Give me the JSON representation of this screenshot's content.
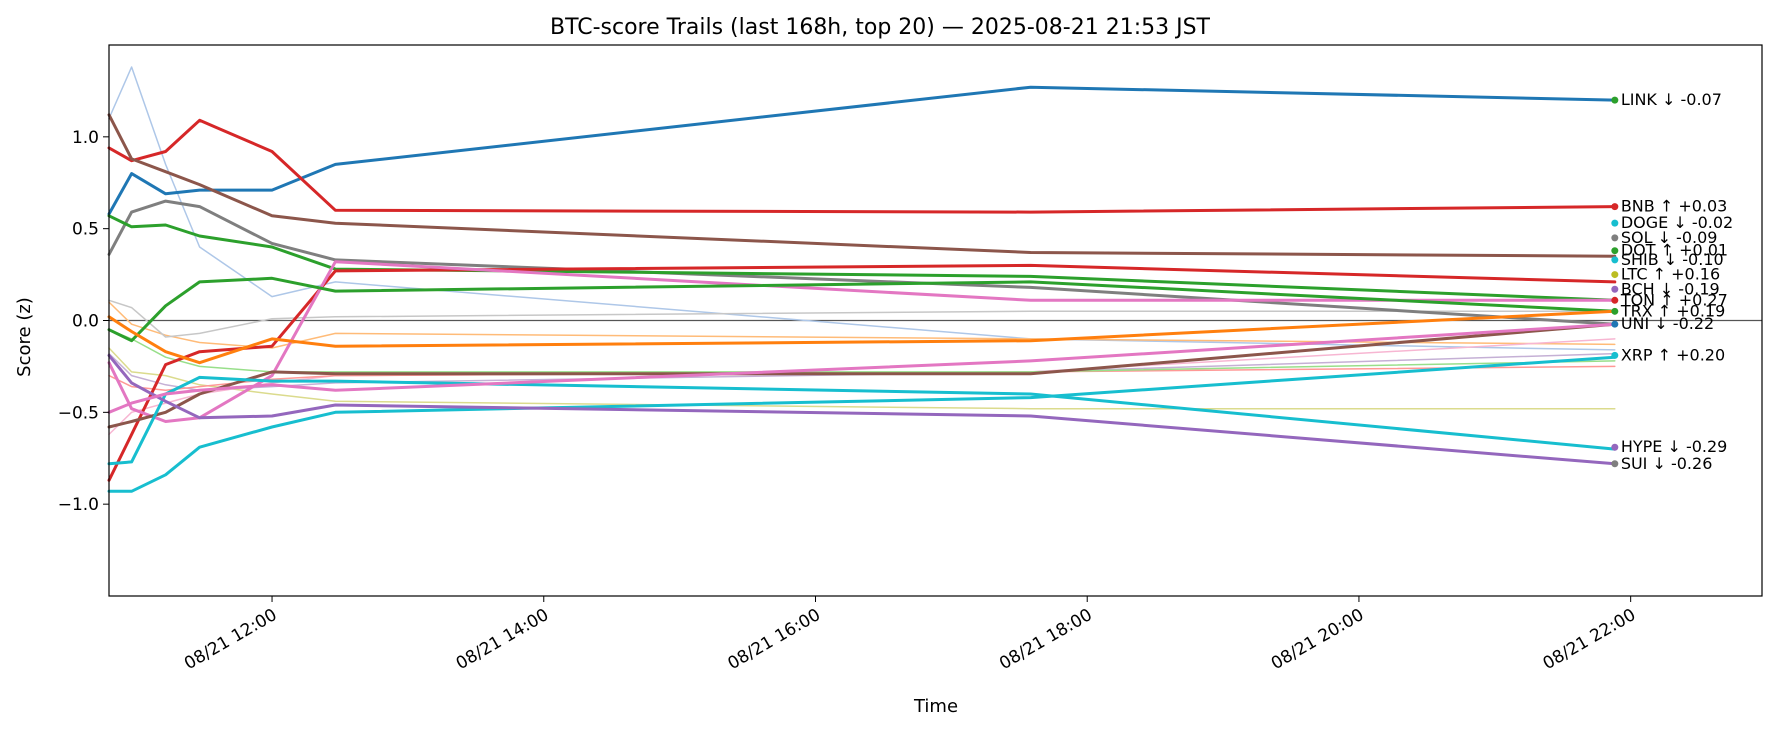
{
  "chart_data": {
    "type": "line",
    "title": "BTC-score Trails (last 168h, top 20) — 2025-08-21 21:53 JST",
    "xlabel": "Time",
    "ylabel": "Score (z)",
    "xlim": [
      "2025-08-21T10:48",
      "2025-08-21T22:58"
    ],
    "ylim": [
      -1.5,
      1.5
    ],
    "x_ticks": [
      {
        "t": "2025-08-21T12:00",
        "label": "08/21 12:00"
      },
      {
        "t": "2025-08-21T14:00",
        "label": "08/21 14:00"
      },
      {
        "t": "2025-08-21T16:00",
        "label": "08/21 16:00"
      },
      {
        "t": "2025-08-21T18:00",
        "label": "08/21 18:00"
      },
      {
        "t": "2025-08-21T20:00",
        "label": "08/21 20:00"
      },
      {
        "t": "2025-08-21T22:00",
        "label": "08/21 22:00"
      }
    ],
    "y_ticks": [
      {
        "v": 1.0,
        "label": "1.0"
      },
      {
        "v": 0.5,
        "label": "0.5"
      },
      {
        "v": 0.0,
        "label": "0.0"
      },
      {
        "v": -0.5,
        "label": "−0.5"
      },
      {
        "v": -1.0,
        "label": "−1.0"
      }
    ],
    "zero_line": 0,
    "x": [
      "2025-08-21T10:48",
      "2025-08-21T10:58",
      "2025-08-21T11:13",
      "2025-08-21T11:28",
      "2025-08-21T12:00",
      "2025-08-21T12:28",
      "2025-08-21T17:35",
      "2025-08-21T21:53"
    ],
    "series": [
      {
        "color": "#aec7e8",
        "width": 1.5,
        "values": [
          1.1,
          1.38,
          0.85,
          0.4,
          0.13,
          0.21,
          -0.1,
          -0.16
        ]
      },
      {
        "color": "#ffbb78",
        "width": 1.5,
        "values": [
          0.1,
          -0.02,
          -0.08,
          -0.12,
          -0.15,
          -0.07,
          -0.1,
          -0.13
        ]
      },
      {
        "color": "#dbdb8d",
        "width": 1.5,
        "values": [
          -0.15,
          -0.28,
          -0.3,
          -0.35,
          -0.4,
          -0.44,
          -0.48,
          -0.48
        ]
      },
      {
        "color": "#c7c7c7",
        "width": 1.5,
        "values": [
          0.11,
          0.07,
          -0.09,
          -0.07,
          0.01,
          0.02,
          0.05,
          0.05
        ]
      },
      {
        "color": "#f7b6d2",
        "width": 1.5,
        "values": [
          -0.62,
          -0.5,
          -0.45,
          -0.4,
          -0.34,
          -0.3,
          -0.28,
          -0.1
        ]
      },
      {
        "color": "#c5b0d5",
        "width": 1.5,
        "values": [
          -0.18,
          -0.3,
          -0.35,
          -0.38,
          -0.36,
          -0.34,
          -0.28,
          -0.18
        ]
      },
      {
        "color": "#ff9896",
        "width": 1.5,
        "values": [
          -0.3,
          -0.36,
          -0.38,
          -0.36,
          -0.32,
          -0.3,
          -0.28,
          -0.25
        ]
      },
      {
        "color": "#98df8a",
        "width": 1.5,
        "values": [
          -0.05,
          -0.1,
          -0.2,
          -0.25,
          -0.28,
          -0.28,
          -0.28,
          -0.22
        ]
      },
      {
        "color": "#1f77b4",
        "width": 3,
        "values": [
          0.58,
          0.8,
          0.69,
          0.71,
          0.71,
          0.85,
          1.27,
          1.2
        ],
        "end_label": "LINK ↓ -0.07",
        "dot_color": "#2ca02c",
        "label_v": 1.2
      },
      {
        "color": "#d62728",
        "width": 3,
        "values": [
          0.94,
          0.87,
          0.92,
          1.09,
          0.92,
          0.6,
          0.59,
          0.62
        ],
        "end_label": "BNB ↑ +0.03",
        "dot_color": "#d62728",
        "label_v": 0.62
      },
      {
        "color": "#8c564b",
        "width": 3,
        "values": [
          1.12,
          0.88,
          0.81,
          0.74,
          0.57,
          0.53,
          0.37,
          0.35
        ],
        "end_label": "DOGE ↓ -0.02",
        "dot_color": "#17becf",
        "label_v": 0.53
      },
      {
        "color": "#7f7f7f",
        "width": 3,
        "values": [
          0.36,
          0.59,
          0.65,
          0.62,
          0.42,
          0.33,
          0.18,
          -0.02
        ],
        "end_label": "SOL ↓ -0.09",
        "dot_color": "#7f7f7f",
        "label_v": 0.45
      },
      {
        "color": "#2ca02c",
        "width": 3,
        "values": [
          0.57,
          0.51,
          0.52,
          0.46,
          0.4,
          0.28,
          0.24,
          0.11
        ],
        "end_label": "DOT ↑ +0.01",
        "dot_color": "#2ca02c",
        "label_v": 0.38
      },
      {
        "color": "#d62728",
        "width": 3,
        "values": [
          -0.87,
          -0.62,
          -0.24,
          -0.17,
          -0.14,
          0.27,
          0.3,
          0.21
        ],
        "end_label": "SHIB ↓ -0.10",
        "dot_color": "#17becf",
        "label_v": 0.33
      },
      {
        "color": "#e377c2",
        "width": 3,
        "values": [
          -0.23,
          -0.48,
          -0.55,
          -0.53,
          -0.3,
          0.32,
          0.11,
          0.11
        ],
        "end_label": "LTC ↑ +0.16",
        "dot_color": "#bcbd22",
        "label_v": 0.25
      },
      {
        "color": "#2ca02c",
        "width": 3,
        "values": [
          -0.05,
          -0.11,
          0.08,
          0.21,
          0.23,
          0.16,
          0.21,
          0.05
        ],
        "end_label": "BCH ↓ -0.19",
        "dot_color": "#9467bd",
        "label_v": 0.17
      },
      {
        "color": "#ff7f0e",
        "width": 3,
        "values": [
          0.02,
          -0.06,
          -0.17,
          -0.23,
          -0.1,
          -0.14,
          -0.11,
          0.05
        ],
        "end_label": "TON ↑ +0.27",
        "dot_color": "#d62728",
        "label_v": 0.11
      },
      {
        "color": "#8c564b",
        "width": 3,
        "values": [
          -0.58,
          -0.55,
          -0.5,
          -0.4,
          -0.28,
          -0.29,
          -0.29,
          -0.02
        ],
        "end_label": "TRX ↑ +0.19",
        "dot_color": "#2ca02c",
        "label_v": 0.05
      },
      {
        "color": "#17becf",
        "width": 3,
        "values": [
          -0.93,
          -0.93,
          -0.84,
          -0.69,
          -0.58,
          -0.5,
          -0.42,
          -0.2
        ],
        "end_label": "UNI ↓ -0.22",
        "dot_color": "#1f77b4",
        "label_v": -0.02
      },
      {
        "color": "#17becf",
        "width": 3,
        "values": [
          -0.78,
          -0.77,
          -0.4,
          -0.31,
          -0.33,
          -0.33,
          -0.4,
          -0.7
        ],
        "end_label": "XRP ↑ +0.20",
        "dot_color": "#17becf",
        "label_v": -0.19
      },
      {
        "color": "#9467bd",
        "width": 3,
        "values": [
          -0.19,
          -0.34,
          -0.44,
          -0.53,
          -0.52,
          -0.46,
          -0.52,
          -0.78
        ],
        "end_label": "HYPE ↓ -0.29",
        "dot_color": "#9467bd",
        "label_v": -0.69
      },
      {
        "color": "#e377c2",
        "width": 3,
        "values": [
          -0.5,
          -0.45,
          -0.4,
          -0.38,
          -0.35,
          -0.38,
          -0.22,
          -0.02
        ],
        "end_label": "SUI ↓ -0.26",
        "dot_color": "#7f7f7f",
        "label_v": -0.78
      }
    ]
  }
}
